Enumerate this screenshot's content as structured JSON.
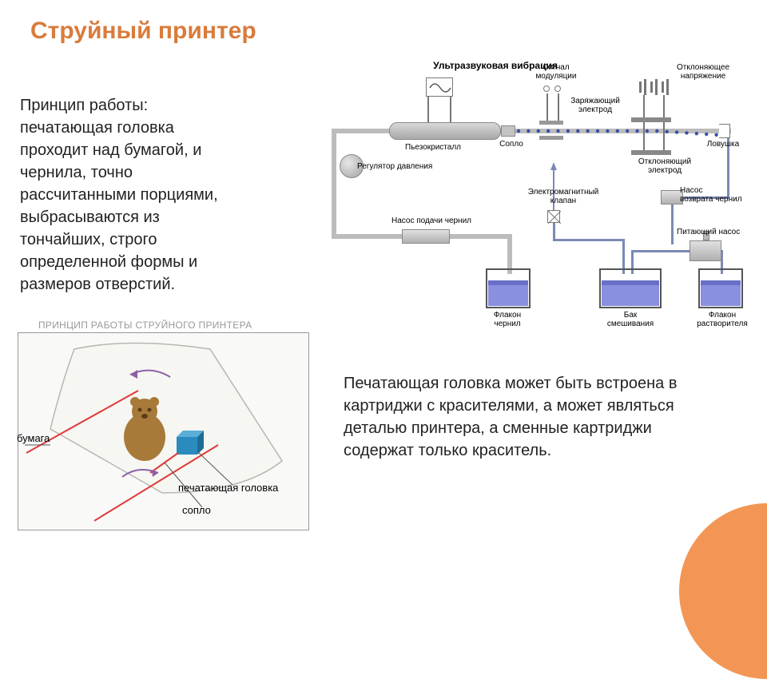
{
  "title": {
    "text": "Струйный принтер",
    "color": "#d97b3c",
    "fontsize": 30
  },
  "para1": {
    "text": "Принцип работы: печатающая головка проходит над бумагой, и чернила, точно рассчитанными порциями, выбрасываются из тончайших, строго определенной формы и размеров отверстий.",
    "fontsize": 20,
    "color": "#222"
  },
  "para2": {
    "text": "Печатающая головка может быть встроена в картриджи с красителями, а может являться  деталью принтера, а сменные картриджи содержат только краситель.",
    "fontsize": 20,
    "color": "#222"
  },
  "schematic": {
    "title": "Ультразвуковая вибрация",
    "labels": {
      "modulation_signal": "Сигнал\nмодуляции",
      "deflecting_voltage": "Отклоняющее\nнапряжение",
      "charging_electrode": "Заряжающий\nэлектрод",
      "nozzle": "Сопло",
      "trap": "Ловушка",
      "piezo": "Пьезокристалл",
      "deflecting_electrode": "Отклоняющий\nэлектрод",
      "pressure_regulator": "Регулятор давления",
      "em_valve": "Электромагнитный\nклапан",
      "ink_return_pump": "Насос\nвозврата чернил",
      "ink_supply_pump": "Насос подачи чернил",
      "feed_pump": "Питающий насос",
      "ink_bottle": "Флакон\nчернил",
      "mixing_tank": "Бак\nсмешивания",
      "solvent_bottle": "Флакон\nрастворителя"
    },
    "colors": {
      "pipe": "#bcbcbc",
      "thin_pipe": "#7b8ab5",
      "ink": "#8a8fe0",
      "ink_dark": "#6a6fc8",
      "frame": "#888",
      "bottle_stroke": "#555",
      "drop": "#3a4fa8",
      "label": "#222",
      "label_size": 11
    },
    "drops_count": 22
  },
  "left_diagram": {
    "title": "ПРИНЦИП РАБОТЫ СТРУЙНОГО ПРИНТЕРА",
    "labels": {
      "paper": "бумага",
      "printhead": "печатающая головка",
      "nozzle": "сопло"
    },
    "colors": {
      "paper_fill": "#f6f6f2",
      "paper_stroke": "#b8b8b0",
      "red": "#e03a3a",
      "blue": "#2b8bbf",
      "arrow": "#8c5fa8",
      "bear_body": "#a87a3a",
      "bear_dark": "#5b3c18"
    }
  },
  "accent": {
    "arc_color": "#f39655"
  }
}
